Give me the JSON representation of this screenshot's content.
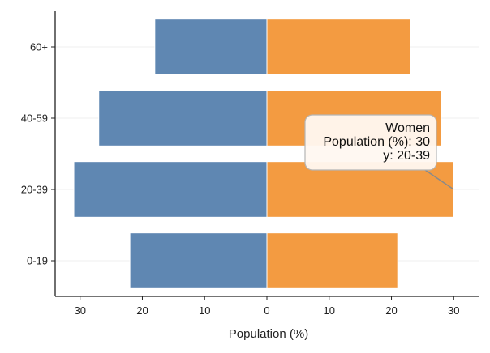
{
  "chart_data": {
    "type": "bar",
    "orientation": "horizontal",
    "layout": "diverging",
    "categories": [
      "0-19",
      "20-39",
      "40-59",
      "60+"
    ],
    "series": [
      {
        "values": [
          -22,
          -31,
          -27,
          -18
        ],
        "color": "#5f87b2"
      },
      {
        "name": "Women",
        "values": [
          21,
          30,
          28,
          23
        ],
        "color": "#f39b41"
      }
    ],
    "xlabel": "Population (%)",
    "ylabel": "",
    "xlim": [
      -34,
      34
    ],
    "xticks": [
      -30,
      -20,
      -10,
      0,
      10,
      20,
      30
    ],
    "xtick_labels": [
      "30",
      "20",
      "10",
      "0",
      "10",
      "20",
      "30"
    ],
    "grid": "horizontal-faint",
    "tooltip": {
      "series": "Women",
      "category": "20-39",
      "value": 30,
      "lines": [
        "Women",
        "Population (%): 30",
        "y: 20-39"
      ]
    }
  }
}
